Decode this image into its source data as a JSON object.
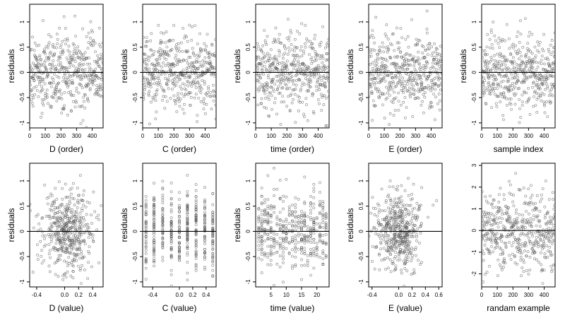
{
  "chart_data": [
    {
      "type": "scatter",
      "panel_id": "d-order",
      "xlabel": "D (order)",
      "ylabel": "residuals",
      "xlim": [
        0,
        470
      ],
      "ylim": [
        -1.1,
        1.35
      ],
      "xticks": [
        0,
        100,
        200,
        300,
        400
      ],
      "yticks": [
        -1.0,
        -0.5,
        0.0,
        0.5,
        1.0
      ],
      "reference_line_y": 0,
      "n_points": 470,
      "x_kind": "order",
      "y_sd": 0.38,
      "points_note": "dense cloud of hollow circles"
    },
    {
      "type": "scatter",
      "panel_id": "c-order",
      "xlabel": "C (order)",
      "ylabel": "residuals",
      "xlim": [
        0,
        470
      ],
      "ylim": [
        -1.1,
        1.35
      ],
      "xticks": [
        0,
        100,
        200,
        300,
        400
      ],
      "yticks": [
        -1.0,
        -0.5,
        0.0,
        0.5,
        1.0
      ],
      "reference_line_y": 0,
      "n_points": 470,
      "x_kind": "order",
      "y_sd": 0.38,
      "points_note": "dense cloud of hollow circles"
    },
    {
      "type": "scatter",
      "panel_id": "time-order",
      "xlabel": "time (order)",
      "ylabel": "residuals",
      "xlim": [
        0,
        470
      ],
      "ylim": [
        -1.1,
        1.35
      ],
      "xticks": [
        0,
        100,
        200,
        300,
        400
      ],
      "yticks": [
        -1.0,
        -0.5,
        0.0,
        0.5,
        1.0
      ],
      "reference_line_y": 0,
      "n_points": 470,
      "x_kind": "order",
      "y_sd": 0.38,
      "points_note": "dense cloud of hollow circles"
    },
    {
      "type": "scatter",
      "panel_id": "e-order",
      "xlabel": "E (order)",
      "ylabel": "residuals",
      "xlim": [
        0,
        470
      ],
      "ylim": [
        -1.1,
        1.35
      ],
      "xticks": [
        0,
        100,
        200,
        300,
        400
      ],
      "yticks": [
        -1.0,
        -0.5,
        0.0,
        0.5,
        1.0
      ],
      "reference_line_y": 0,
      "n_points": 470,
      "x_kind": "order",
      "y_sd": 0.38,
      "points_note": "dense cloud of hollow circles"
    },
    {
      "type": "scatter",
      "panel_id": "sample-index",
      "xlabel": "sample index",
      "ylabel": "residuals",
      "xlim": [
        0,
        470
      ],
      "ylim": [
        -1.1,
        1.35
      ],
      "xticks": [
        0,
        100,
        200,
        300,
        400
      ],
      "yticks": [
        -1.0,
        -0.5,
        0.0,
        0.5,
        1.0
      ],
      "reference_line_y": 0,
      "n_points": 470,
      "x_kind": "order",
      "y_sd": 0.38,
      "points_note": "dense cloud of hollow circles"
    },
    {
      "type": "scatter",
      "panel_id": "d-value",
      "xlabel": "D (value)",
      "ylabel": "residuals",
      "xlim": [
        -0.5,
        0.55
      ],
      "ylim": [
        -1.1,
        1.35
      ],
      "xticks": [
        -0.4,
        0.0,
        0.2,
        0.4
      ],
      "xtick_labels": [
        "-0.4",
        "0.0",
        "0.2",
        "0.4"
      ],
      "yticks": [
        -1.0,
        -0.5,
        0.0,
        0.5,
        1.0
      ],
      "reference_line_y": 0,
      "n_points": 470,
      "x_kind": "gauss",
      "x_center": 0.05,
      "x_sd": 0.2,
      "y_sd": 0.38,
      "points_note": "cloud clustered around x=0.1"
    },
    {
      "type": "scatter",
      "panel_id": "c-value",
      "xlabel": "C (value)",
      "ylabel": "residuals",
      "xlim": [
        -0.55,
        0.55
      ],
      "ylim": [
        -1.1,
        1.35
      ],
      "xticks": [
        -0.4,
        0.0,
        0.2,
        0.4
      ],
      "xtick_labels": [
        "-0.4",
        "0.0",
        "0.2",
        "0.4"
      ],
      "yticks": [
        -1.0,
        -0.5,
        0.0,
        0.5,
        1.0
      ],
      "reference_line_y": 0,
      "n_points": 470,
      "x_kind": "discrete",
      "x_levels": [
        -0.5,
        -0.38,
        -0.25,
        -0.12,
        0.0,
        0.12,
        0.25,
        0.38,
        0.5
      ],
      "y_sd": 0.38,
      "points_note": "points stacked in vertical columns at discrete C values"
    },
    {
      "type": "scatter",
      "panel_id": "time-value",
      "xlabel": "time (value)",
      "ylabel": "residuals",
      "xlim": [
        0,
        24
      ],
      "ylim": [
        -1.1,
        1.35
      ],
      "xticks": [
        5,
        10,
        15,
        20
      ],
      "xtick_labels": [
        "5",
        "10",
        "15",
        "20"
      ],
      "yticks": [
        -1.0,
        -0.5,
        0.0,
        0.5,
        1.0
      ],
      "reference_line_y": 0,
      "n_points": 470,
      "x_kind": "discrete",
      "x_levels": [
        1,
        2,
        3,
        4,
        5,
        6,
        7,
        8,
        9,
        10,
        11,
        12,
        13,
        14,
        15,
        16,
        17,
        18,
        19,
        20,
        21,
        22,
        23
      ],
      "y_sd": 0.38,
      "points_note": "points in vertical columns at integer time values"
    },
    {
      "type": "scatter",
      "panel_id": "e-value",
      "xlabel": "E (value)",
      "ylabel": "residuals",
      "xlim": [
        -0.45,
        0.65
      ],
      "ylim": [
        -1.1,
        1.35
      ],
      "xticks": [
        -0.4,
        0.0,
        0.2,
        0.4,
        0.6
      ],
      "xtick_labels": [
        "-0.4",
        "0.0",
        "0.2",
        "0.4",
        "0.6"
      ],
      "yticks": [
        -1.0,
        -0.5,
        0.0,
        0.5,
        1.0
      ],
      "reference_line_y": 0,
      "n_points": 470,
      "x_kind": "gauss",
      "x_center": 0.0,
      "x_sd": 0.18,
      "y_sd": 0.38,
      "points_note": "cloud concentrated near x=0"
    },
    {
      "type": "scatter",
      "panel_id": "random-example",
      "xlabel": "randam example",
      "ylabel": "",
      "xlim": [
        0,
        470
      ],
      "ylim": [
        -2.6,
        3.1
      ],
      "xticks": [
        0,
        100,
        200,
        300,
        400
      ],
      "yticks": [
        -2,
        -1,
        0,
        1,
        2,
        3
      ],
      "reference_line_y": 0,
      "n_points": 470,
      "x_kind": "order",
      "y_sd": 1.0,
      "points_note": "standard-normal random cloud"
    }
  ]
}
